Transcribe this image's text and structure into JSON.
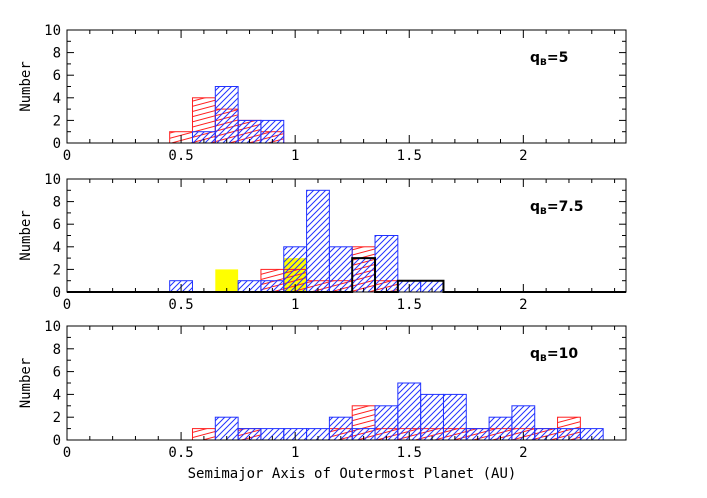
{
  "figure": {
    "xlabel": "Semimajor Axis of Outermost Planet (AU)"
  },
  "chart_data": [
    {
      "type": "histogram",
      "annotation_main": "q",
      "annotation_sub": "B",
      "annotation_value": "=5",
      "ylabel": "Number",
      "xlim": [
        0,
        2.45
      ],
      "ylim": [
        0,
        10
      ],
      "x_ticks": [
        {
          "v": 0,
          "label": "0"
        },
        {
          "v": 0.5,
          "label": "0.5"
        },
        {
          "v": 1,
          "label": "1"
        },
        {
          "v": 1.5,
          "label": "1.5"
        },
        {
          "v": 2,
          "label": "2"
        }
      ],
      "y_ticks": [
        0,
        2,
        4,
        6,
        8,
        10
      ],
      "bin_width": 0.1,
      "series": [
        {
          "name": "red-hatched",
          "style": "red-hatch",
          "bins": [
            [
              0.45,
              1
            ],
            [
              0.55,
              4
            ],
            [
              0.65,
              3
            ],
            [
              0.75,
              2
            ],
            [
              0.85,
              1
            ]
          ]
        },
        {
          "name": "blue-hatched",
          "style": "blue-hatch",
          "bins": [
            [
              0.55,
              1
            ],
            [
              0.65,
              5
            ],
            [
              0.75,
              2
            ],
            [
              0.85,
              2
            ]
          ]
        }
      ]
    },
    {
      "type": "histogram",
      "annotation_main": "q",
      "annotation_sub": "B",
      "annotation_value": "=7.5",
      "ylabel": "Number",
      "xlim": [
        0,
        2.45
      ],
      "ylim": [
        0,
        10
      ],
      "x_ticks": [
        {
          "v": 0,
          "label": "0"
        },
        {
          "v": 0.5,
          "label": "0.5"
        },
        {
          "v": 1,
          "label": "1"
        },
        {
          "v": 1.5,
          "label": "1.5"
        },
        {
          "v": 2,
          "label": "2"
        }
      ],
      "y_ticks": [
        0,
        2,
        4,
        6,
        8,
        10
      ],
      "bin_width": 0.1,
      "series": [
        {
          "name": "yellow-filled",
          "style": "yellow",
          "bins": [
            [
              0.65,
              2
            ],
            [
              0.95,
              3
            ]
          ]
        },
        {
          "name": "red-hatched",
          "style": "red-hatch",
          "bins": [
            [
              0.85,
              2
            ],
            [
              0.95,
              2
            ],
            [
              1.05,
              1
            ],
            [
              1.15,
              1
            ],
            [
              1.25,
              4
            ],
            [
              1.35,
              1
            ]
          ]
        },
        {
          "name": "blue-hatched",
          "style": "blue-hatch",
          "bins": [
            [
              0.45,
              1
            ],
            [
              0.75,
              1
            ],
            [
              0.85,
              1
            ],
            [
              0.95,
              4
            ],
            [
              1.05,
              9
            ],
            [
              1.15,
              4
            ],
            [
              1.25,
              3
            ],
            [
              1.35,
              5
            ],
            [
              1.45,
              1
            ],
            [
              1.55,
              1
            ]
          ]
        },
        {
          "name": "black-outline",
          "style": "black-outline",
          "bins": [
            [
              0.0,
              0
            ],
            [
              0.1,
              0
            ],
            [
              0.2,
              0
            ],
            [
              0.3,
              0
            ],
            [
              0.4,
              0
            ],
            [
              0.5,
              0
            ],
            [
              0.6,
              0
            ],
            [
              0.7,
              0
            ],
            [
              0.8,
              0
            ],
            [
              0.9,
              0
            ],
            [
              1.0,
              0
            ],
            [
              1.1,
              0
            ],
            [
              1.2,
              0
            ],
            [
              1.25,
              3
            ],
            [
              1.35,
              0
            ],
            [
              1.45,
              1
            ],
            [
              1.55,
              1
            ],
            [
              1.65,
              0
            ],
            [
              1.75,
              0
            ],
            [
              1.85,
              0
            ],
            [
              1.95,
              0
            ],
            [
              2.05,
              0
            ],
            [
              2.15,
              0
            ],
            [
              2.25,
              0
            ],
            [
              2.35,
              0
            ]
          ]
        }
      ]
    },
    {
      "type": "histogram",
      "annotation_main": "q",
      "annotation_sub": "B",
      "annotation_value": "=10",
      "ylabel": "Number",
      "xlim": [
        0,
        2.45
      ],
      "ylim": [
        0,
        10
      ],
      "x_ticks": [
        {
          "v": 0,
          "label": "0"
        },
        {
          "v": 0.5,
          "label": "0.5"
        },
        {
          "v": 1,
          "label": "1"
        },
        {
          "v": 1.5,
          "label": "1.5"
        },
        {
          "v": 2,
          "label": "2"
        }
      ],
      "y_ticks": [
        0,
        2,
        4,
        6,
        8,
        10
      ],
      "bin_width": 0.1,
      "series": [
        {
          "name": "red-hatched",
          "style": "red-hatch",
          "bins": [
            [
              0.55,
              1
            ],
            [
              0.75,
              1
            ],
            [
              1.15,
              1
            ],
            [
              1.25,
              3
            ],
            [
              1.35,
              1
            ],
            [
              1.45,
              1
            ],
            [
              1.55,
              1
            ],
            [
              1.65,
              1
            ],
            [
              1.75,
              1
            ],
            [
              1.85,
              1
            ],
            [
              1.95,
              1
            ],
            [
              2.05,
              1
            ],
            [
              2.15,
              2
            ]
          ]
        },
        {
          "name": "blue-hatched",
          "style": "blue-hatch",
          "bins": [
            [
              0.65,
              2
            ],
            [
              0.75,
              1
            ],
            [
              0.85,
              1
            ],
            [
              0.95,
              1
            ],
            [
              1.05,
              1
            ],
            [
              1.15,
              2
            ],
            [
              1.25,
              1
            ],
            [
              1.35,
              3
            ],
            [
              1.45,
              5
            ],
            [
              1.55,
              4
            ],
            [
              1.65,
              4
            ],
            [
              1.75,
              1
            ],
            [
              1.85,
              2
            ],
            [
              1.95,
              3
            ],
            [
              2.05,
              1
            ],
            [
              2.15,
              1
            ],
            [
              2.25,
              1
            ]
          ]
        }
      ]
    }
  ]
}
